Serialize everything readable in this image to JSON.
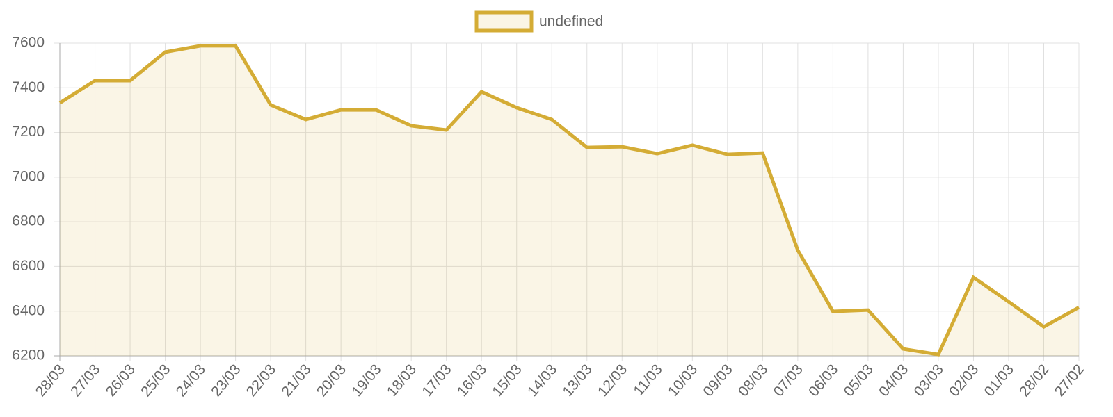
{
  "chart_data": {
    "type": "line",
    "categories": [
      "28/03",
      "27/03",
      "26/03",
      "25/03",
      "24/03",
      "23/03",
      "22/03",
      "21/03",
      "20/03",
      "19/03",
      "18/03",
      "17/03",
      "16/03",
      "15/03",
      "14/03",
      "13/03",
      "12/03",
      "11/03",
      "10/03",
      "09/03",
      "08/03",
      "07/03",
      "06/03",
      "05/03",
      "04/03",
      "03/03",
      "02/03",
      "01/03",
      "28/02",
      "27/02"
    ],
    "series": [
      {
        "name": "undefined",
        "color": "#d4ac35",
        "values": [
          7332,
          7432,
          7432,
          7560,
          7588,
          7588,
          7323,
          7258,
          7301,
          7301,
          7230,
          7211,
          7382,
          7311,
          7258,
          7133,
          7136,
          7105,
          7143,
          7102,
          7108,
          6673,
          6399,
          6405,
          6231,
          6206,
          6551,
          6442,
          6330,
          6417
        ]
      }
    ],
    "ylim": [
      6200,
      7600
    ],
    "yticks": [
      6200,
      6400,
      6600,
      6800,
      7000,
      7200,
      7400,
      7600
    ],
    "grid": true,
    "legend": "top"
  }
}
